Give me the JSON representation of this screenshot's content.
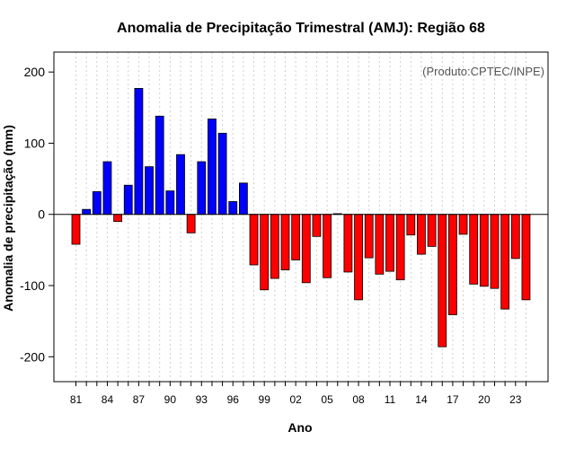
{
  "chart_data": {
    "type": "bar",
    "title": "Anomalia de Precipitação Trimestral (AMJ): Região 68",
    "xlabel": "Ano",
    "ylabel": "Anomalia de precipitação (mm)",
    "source_note": "(Produto:CPTEC/INPE)",
    "ylim": [
      -235,
      228
    ],
    "yticks": [
      -200,
      -100,
      0,
      100,
      200
    ],
    "grid": "vertical-dotted",
    "positive_color": "#0000ff",
    "negative_color": "#ff0000",
    "categories": [
      1981,
      1982,
      1983,
      1984,
      1985,
      1986,
      1987,
      1988,
      1989,
      1990,
      1991,
      1992,
      1993,
      1994,
      1995,
      1996,
      1997,
      1998,
      1999,
      2000,
      2001,
      2002,
      2003,
      2004,
      2005,
      2006,
      2007,
      2008,
      2009,
      2010,
      2011,
      2012,
      2013,
      2014,
      2015,
      2016,
      2017,
      2018,
      2019,
      2020,
      2021,
      2022,
      2023,
      2024
    ],
    "values": [
      -42,
      7,
      32,
      74,
      -10,
      41,
      177,
      67,
      138,
      33,
      84,
      -26,
      74,
      134,
      114,
      18,
      44,
      -71,
      -106,
      -90,
      -78,
      -64,
      -96,
      -31,
      -89,
      1,
      -81,
      -120,
      -61,
      -84,
      -80,
      -92,
      -29,
      -56,
      -45,
      -186,
      -141,
      -28,
      -98,
      -101,
      -104,
      -133,
      -62,
      -120
    ],
    "xtick_labels": [
      {
        "year": 1981,
        "label": "81"
      },
      {
        "year": 1984,
        "label": "84"
      },
      {
        "year": 1987,
        "label": "87"
      },
      {
        "year": 1990,
        "label": "90"
      },
      {
        "year": 1993,
        "label": "93"
      },
      {
        "year": 1996,
        "label": "96"
      },
      {
        "year": 1999,
        "label": "99"
      },
      {
        "year": 2002,
        "label": "02"
      },
      {
        "year": 2005,
        "label": "05"
      },
      {
        "year": 2008,
        "label": "08"
      },
      {
        "year": 2011,
        "label": "11"
      },
      {
        "year": 2014,
        "label": "14"
      },
      {
        "year": 2017,
        "label": "17"
      },
      {
        "year": 2020,
        "label": "20"
      },
      {
        "year": 2023,
        "label": "23"
      }
    ]
  }
}
